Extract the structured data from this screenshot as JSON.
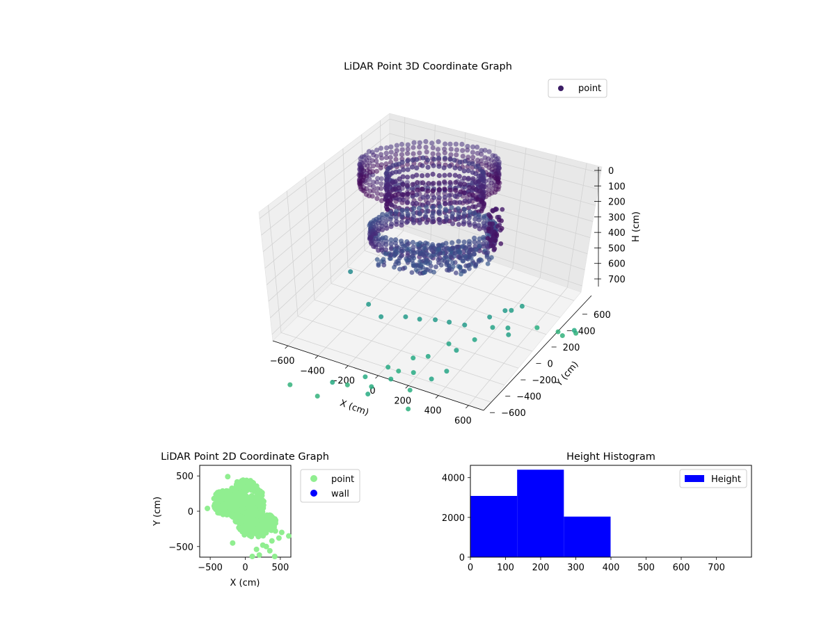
{
  "chart_data": [
    {
      "type": "scatter",
      "title": "LiDAR Point 3D Coordinate Graph",
      "xlabel": "X (cm)",
      "ylabel": "Y (cm)",
      "zlabel": "H (cm)",
      "x_ticks": [
        "−600",
        "−400",
        "−200",
        "0",
        "200",
        "400",
        "600"
      ],
      "y_ticks": [
        "−600",
        "−400",
        "−200",
        "0",
        "200",
        "400",
        "600"
      ],
      "z_ticks": [
        "0",
        "100",
        "200",
        "300",
        "400",
        "500",
        "600",
        "700"
      ],
      "xlim": [
        -650,
        650
      ],
      "ylim": [
        -650,
        650
      ],
      "zlim": [
        0,
        760
      ],
      "z_inverted": true,
      "legend": [
        "point"
      ],
      "legend_position": "top-right",
      "colormap": "viridis",
      "grid": true,
      "series": [
        {
          "name": "point",
          "points": [
            [
              -560,
              -620,
              760
            ],
            [
              -380,
              -640,
              760
            ],
            [
              -290,
              -460,
              760
            ],
            [
              -330,
              -560,
              700
            ],
            [
              -200,
              -420,
              700
            ],
            [
              -110,
              -560,
              700
            ],
            [
              -80,
              -250,
              720
            ],
            [
              -40,
              -150,
              680
            ],
            [
              60,
              -380,
              720
            ],
            [
              120,
              -520,
              740
            ],
            [
              170,
              -330,
              640
            ],
            [
              210,
              -220,
              640
            ],
            [
              -140,
              -460,
              720
            ],
            [
              -60,
              -380,
              690
            ],
            [
              40,
              -120,
              660
            ],
            [
              100,
              20,
              640
            ],
            [
              180,
              -40,
              620
            ],
            [
              210,
              130,
              640
            ],
            [
              260,
              260,
              620
            ],
            [
              340,
              300,
              620
            ],
            [
              380,
              230,
              610
            ],
            [
              240,
              260,
              560
            ],
            [
              290,
              360,
              560
            ],
            [
              150,
              120,
              560
            ],
            [
              60,
              100,
              560
            ],
            [
              -20,
              80,
              560
            ],
            [
              -100,
              40,
              560
            ],
            [
              -180,
              20,
              560
            ],
            [
              -300,
              -50,
              560
            ],
            [
              -420,
              20,
              560
            ],
            [
              -560,
              60,
              420
            ],
            [
              420,
              520,
              720
            ],
            [
              560,
              580,
              760
            ],
            [
              620,
              640,
              760
            ],
            [
              640,
              580,
              700
            ],
            [
              520,
              600,
              760
            ],
            [
              -120,
              -300,
              680
            ],
            [
              20,
              -260,
              690
            ],
            [
              300,
              420,
              590
            ],
            [
              330,
              500,
              600
            ]
          ]
        }
      ]
    },
    {
      "type": "scatter",
      "title": "LiDAR Point 2D Coordinate Graph",
      "xlabel": "X (cm)",
      "ylabel": "Y (cm)",
      "x_ticks": [
        "−500",
        "0",
        "500"
      ],
      "y_ticks": [
        "−500",
        "0",
        "500"
      ],
      "xlim": [
        -650,
        650
      ],
      "ylim": [
        -650,
        650
      ],
      "legend": [
        "point",
        "wall"
      ],
      "legend_position": "outside right",
      "grid": false,
      "series": [
        {
          "name": "point",
          "color": "#90ee90"
        },
        {
          "name": "wall",
          "color": "#0000ff",
          "points": []
        }
      ],
      "outlier_points": [
        [
          -250,
          490
        ],
        [
          430,
          -280
        ],
        [
          620,
          -350
        ],
        [
          480,
          -380
        ],
        [
          200,
          -620
        ],
        [
          300,
          -500
        ],
        [
          350,
          -560
        ],
        [
          250,
          -480
        ],
        [
          -180,
          -450
        ],
        [
          100,
          -640
        ],
        [
          420,
          -640
        ],
        [
          520,
          -300
        ],
        [
          -540,
          40
        ],
        [
          380,
          -420
        ],
        [
          160,
          -540
        ]
      ]
    },
    {
      "type": "bar",
      "title": "Height Histogram",
      "xlabel": "",
      "ylabel": "",
      "x_ticks": [
        "0",
        "100",
        "200",
        "300",
        "400",
        "500",
        "600",
        "700"
      ],
      "y_ticks": [
        "0",
        "2000",
        "4000"
      ],
      "xlim": [
        0,
        800
      ],
      "ylim": [
        0,
        4620
      ],
      "legend": [
        "Height"
      ],
      "legend_position": "top-right",
      "color": "#0000ff",
      "series": [
        {
          "name": "Height",
          "bins": [
            [
              0,
              133
            ],
            [
              133,
              266
            ],
            [
              266,
              399
            ],
            [
              399,
              532
            ],
            [
              532,
              665
            ],
            [
              665,
              798
            ]
          ],
          "values": [
            3080,
            4400,
            2040,
            0,
            0,
            0
          ]
        }
      ]
    }
  ]
}
